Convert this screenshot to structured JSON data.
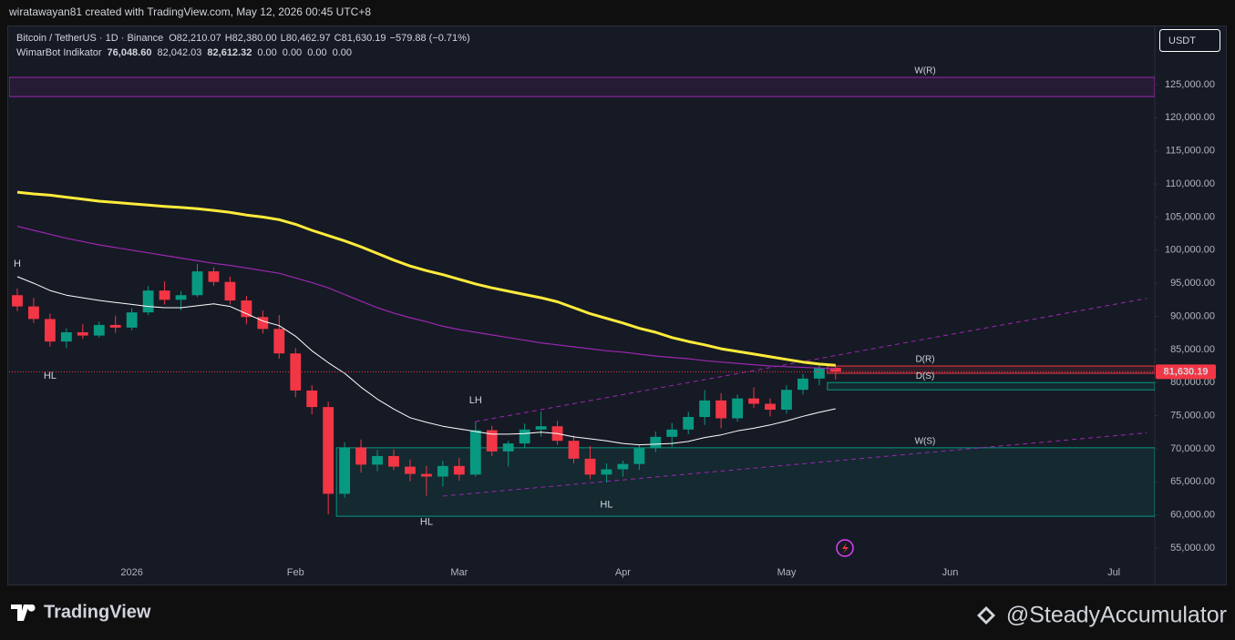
{
  "credit": "wiratawayan81 created with TradingView.com, May 12, 2026 00:45 UTC+8",
  "currency": "USDT",
  "brand": "TradingView",
  "watermark": "@SteadyAccumulator",
  "chart_data": {
    "type": "candlestick",
    "title": "Bitcoin / TetherUS · 1D · Binance",
    "ohlc_legend": [
      {
        "key": "O",
        "value": "82,210.07"
      },
      {
        "key": "H",
        "value": "82,380.00"
      },
      {
        "key": "L",
        "value": "80,462.97"
      },
      {
        "key": "C",
        "value": "81,630.19"
      }
    ],
    "change": "−579.88 (−0.71%)",
    "indicator": {
      "name": "WimarBot Indikator",
      "values": [
        "76,048.60",
        "82,042.03",
        "82,612.32",
        "0.00",
        "0.00",
        "0.00",
        "0.00"
      ],
      "colors": [
        "#ffffff",
        "#9c27b0",
        "#ffeb3b",
        "#2962ff",
        "#2962ff",
        "#2962ff",
        "#2962ff"
      ]
    },
    "last_price_label": "81,630.19",
    "up_color": "#089981",
    "down_color": "#f23645",
    "categories": [
      null,
      null,
      null,
      null,
      null,
      null,
      null,
      "2026",
      null,
      null,
      null,
      null,
      null,
      null,
      null,
      null,
      null,
      "Feb",
      null,
      null,
      null,
      null,
      null,
      null,
      null,
      null,
      null,
      "Mar",
      null,
      null,
      null,
      null,
      null,
      null,
      null,
      null,
      null,
      "Apr",
      null,
      null,
      null,
      null,
      null,
      null,
      null,
      null,
      null,
      "May",
      null,
      null,
      null,
      null,
      null,
      null,
      null,
      null,
      null,
      "Jun",
      null,
      null,
      null,
      null,
      null,
      null,
      null,
      null,
      null,
      "Jul",
      null,
      null
    ],
    "open": [
      93200,
      91500,
      89600,
      86200,
      87600,
      87100,
      88700,
      88300,
      90600,
      93900,
      92500,
      93200,
      96800,
      95200,
      92400,
      89900,
      88100,
      84400,
      78800,
      76300,
      63200,
      70200,
      67600,
      68900,
      67300,
      66200,
      65800,
      67400,
      66100,
      72800,
      69600,
      70800,
      72900,
      73400,
      71200,
      68500,
      66100,
      66900,
      67700,
      70100,
      71800,
      72900,
      74800,
      77300,
      74600,
      77600,
      76800,
      75900,
      78900,
      80600,
      82210.07,
      null,
      null,
      null,
      null,
      null,
      null,
      null,
      null,
      null,
      null,
      null,
      null,
      null,
      null,
      null,
      null,
      null,
      null,
      null
    ],
    "high": [
      94200,
      92800,
      90400,
      88200,
      88800,
      89200,
      90100,
      91200,
      94600,
      95300,
      93800,
      97900,
      97400,
      96000,
      93100,
      90900,
      90200,
      85200,
      79600,
      77100,
      71000,
      71400,
      69800,
      69900,
      68400,
      67400,
      68200,
      68600,
      74100,
      73500,
      71200,
      73800,
      75600,
      74200,
      72000,
      70400,
      67800,
      68200,
      70600,
      72600,
      73900,
      75600,
      78900,
      78400,
      78200,
      79300,
      77600,
      79600,
      81300,
      82700,
      82380,
      null,
      null,
      null,
      null,
      null,
      null,
      null,
      null,
      null,
      null,
      null,
      null,
      null,
      null,
      null,
      null,
      null,
      null,
      null
    ],
    "low": [
      90800,
      89000,
      85400,
      85200,
      86600,
      86800,
      87500,
      87900,
      90200,
      91800,
      90900,
      92900,
      94600,
      91800,
      88800,
      87400,
      83600,
      77800,
      75200,
      60100,
      62600,
      66400,
      66600,
      66800,
      65100,
      62900,
      64300,
      65200,
      65800,
      68900,
      67300,
      70100,
      71800,
      70600,
      67800,
      65400,
      64900,
      65800,
      66800,
      69500,
      70300,
      72200,
      73600,
      73100,
      74100,
      76200,
      74900,
      75300,
      78200,
      79600,
      80462.97,
      null,
      null,
      null,
      null,
      null,
      null,
      null,
      null,
      null,
      null,
      null,
      null,
      null,
      null,
      null,
      null,
      null,
      null,
      null
    ],
    "close": [
      91500,
      89600,
      86200,
      87600,
      87100,
      88700,
      88300,
      90600,
      93900,
      92500,
      93200,
      96800,
      95200,
      92400,
      89900,
      88100,
      84400,
      78800,
      76300,
      63200,
      70200,
      67600,
      68900,
      67300,
      66200,
      65800,
      67400,
      66100,
      72800,
      69600,
      70800,
      72900,
      73400,
      71200,
      68500,
      66100,
      66900,
      67700,
      70100,
      71800,
      72900,
      74800,
      77300,
      74600,
      77600,
      76800,
      75900,
      78900,
      80600,
      82200,
      81630.19,
      null,
      null,
      null,
      null,
      null,
      null,
      null,
      null,
      null,
      null,
      null,
      null,
      null,
      null,
      null,
      null,
      null,
      null,
      null
    ],
    "series": [
      {
        "color": "#9c27b0",
        "width": 1.2,
        "values": [
          103600,
          103000,
          102400,
          101800,
          101300,
          100800,
          100400,
          100000,
          99600,
          99200,
          98800,
          98400,
          98000,
          97700,
          97300,
          96900,
          96500,
          95800,
          95100,
          94300,
          93300,
          92300,
          91300,
          90500,
          89800,
          89200,
          88500,
          88000,
          87600,
          87200,
          86800,
          86400,
          86000,
          85700,
          85400,
          85100,
          84800,
          84600,
          84300,
          84000,
          83800,
          83600,
          83300,
          83100,
          82900,
          82700,
          82500,
          82400,
          82300,
          82200,
          82042.03,
          null,
          null,
          null,
          null,
          null,
          null,
          null,
          null,
          null,
          null,
          null,
          null,
          null,
          null,
          null,
          null,
          null,
          null,
          null
        ]
      },
      {
        "color": "#ffffff",
        "width": 1,
        "values": [
          96000,
          95000,
          93900,
          93200,
          92800,
          92400,
          92100,
          91800,
          91500,
          91300,
          91300,
          91600,
          91900,
          91500,
          90400,
          89300,
          88600,
          87000,
          84800,
          83000,
          81400,
          79300,
          77500,
          76000,
          74700,
          74000,
          73400,
          73000,
          72600,
          72200,
          72200,
          72300,
          72500,
          72300,
          71800,
          71500,
          71200,
          70800,
          70600,
          70700,
          70800,
          71100,
          71700,
          72100,
          72700,
          73100,
          73600,
          74200,
          74900,
          75500,
          76048.6,
          null,
          null,
          null,
          null,
          null,
          null,
          null,
          null,
          null,
          null,
          null,
          null,
          null,
          null,
          null,
          null,
          null,
          null,
          null
        ]
      },
      {
        "color": "#ffeb3b",
        "width": 3,
        "values": [
          108750,
          108500,
          108300,
          108000,
          107700,
          107400,
          107200,
          107000,
          106800,
          106600,
          106450,
          106250,
          106000,
          105700,
          105300,
          105000,
          104600,
          103900,
          103000,
          102200,
          101400,
          100500,
          99500,
          98500,
          97600,
          96900,
          96300,
          95600,
          94900,
          94300,
          93800,
          93300,
          92800,
          92200,
          91300,
          90400,
          89700,
          89000,
          88200,
          87600,
          86800,
          86200,
          85700,
          85100,
          84700,
          84300,
          83900,
          83500,
          83100,
          82800,
          82612.32,
          null,
          null,
          null,
          null,
          null,
          null,
          null,
          null,
          null,
          null,
          null,
          null,
          null,
          null,
          null,
          null,
          null,
          null,
          null
        ]
      }
    ],
    "trendlines": [
      {
        "color": "#9c27b0",
        "from": [
          28,
          74100
        ],
        "to": [
          69,
          92700
        ]
      },
      {
        "color": "#9c27b0",
        "from": [
          26,
          62850
        ],
        "to": [
          69,
          72400
        ]
      }
    ],
    "zones": [
      {
        "label": "W(R)",
        "low": 123200,
        "high": 126100,
        "from": 0,
        "color": "#9c27b0"
      },
      {
        "label": "D(R)",
        "low": 81400,
        "high": 82500,
        "from": 50,
        "color": "#f23645"
      },
      {
        "label": "D(S)",
        "low": 78900,
        "high": 80000,
        "from": 50,
        "color": "#089981"
      },
      {
        "label": "W(S)",
        "low": 59800,
        "high": 70150,
        "from": 20,
        "color": "#089981"
      }
    ],
    "annotations": [
      {
        "text": "H",
        "category": 0,
        "price": 97900,
        "color": "#f23645"
      },
      {
        "text": "HL",
        "category": 2,
        "price": 81000,
        "color": "#2962ff"
      },
      {
        "text": "LH",
        "category": 28,
        "price": 77300,
        "color": "#f23645"
      },
      {
        "text": "HL",
        "category": 25,
        "price": 58900,
        "color": "#2962ff"
      },
      {
        "text": "HL",
        "category": 36,
        "price": 61500,
        "color": "#2962ff"
      }
    ],
    "ylim": [
      49640,
      133660
    ],
    "yticks": [
      {
        "value": 55000,
        "label": "55,000.00"
      },
      {
        "value": 60000,
        "label": "60,000.00"
      },
      {
        "value": 65000,
        "label": "65,000.00"
      },
      {
        "value": 70000,
        "label": "70,000.00"
      },
      {
        "value": 75000,
        "label": "75,000.00"
      },
      {
        "value": 80000,
        "label": "80,000.00"
      },
      {
        "value": 85000,
        "label": "85,000.00"
      },
      {
        "value": 90000,
        "label": "90,000.00"
      },
      {
        "value": 95000,
        "label": "95,000.00"
      },
      {
        "value": 100000,
        "label": "100,000.00"
      },
      {
        "value": 105000,
        "label": "105,000.00"
      },
      {
        "value": 110000,
        "label": "110,000.00"
      },
      {
        "value": 115000,
        "label": "115,000.00"
      },
      {
        "value": 120000,
        "label": "120,000.00"
      },
      {
        "value": 125000,
        "label": "125,000.00"
      }
    ],
    "grid": false
  }
}
